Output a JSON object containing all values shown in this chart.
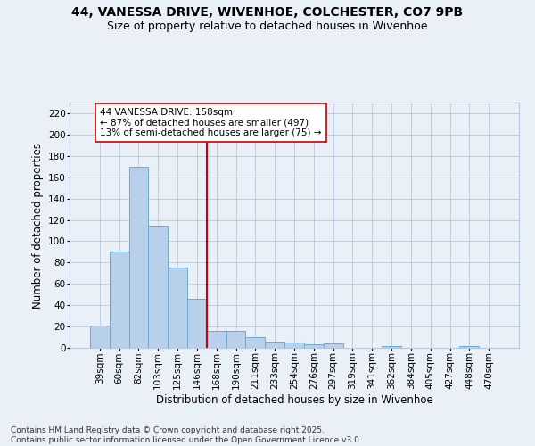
{
  "title_line1": "44, VANESSA DRIVE, WIVENHOE, COLCHESTER, CO7 9PB",
  "title_line2": "Size of property relative to detached houses in Wivenhoe",
  "xlabel": "Distribution of detached houses by size in Wivenhoe",
  "ylabel": "Number of detached properties",
  "categories": [
    "39sqm",
    "60sqm",
    "82sqm",
    "103sqm",
    "125sqm",
    "146sqm",
    "168sqm",
    "190sqm",
    "211sqm",
    "233sqm",
    "254sqm",
    "276sqm",
    "297sqm",
    "319sqm",
    "341sqm",
    "362sqm",
    "384sqm",
    "405sqm",
    "427sqm",
    "448sqm",
    "470sqm"
  ],
  "values": [
    21,
    90,
    170,
    115,
    75,
    46,
    16,
    16,
    10,
    6,
    5,
    3,
    4,
    0,
    0,
    2,
    0,
    0,
    0,
    2,
    0
  ],
  "bar_color": "#b8d0ea",
  "bar_edge_color": "#6aaad4",
  "bar_width": 1.0,
  "vline_x_index": 6.0,
  "vline_color": "#cc0000",
  "annotation_text": "44 VANESSA DRIVE: 158sqm\n← 87% of detached houses are smaller (497)\n13% of semi-detached houses are larger (75) →",
  "annotation_box_color": "#ffffff",
  "annotation_box_edge": "#cc0000",
  "ylim": [
    0,
    230
  ],
  "yticks": [
    0,
    20,
    40,
    60,
    80,
    100,
    120,
    140,
    160,
    180,
    200,
    220
  ],
  "footnote": "Contains HM Land Registry data © Crown copyright and database right 2025.\nContains public sector information licensed under the Open Government Licence v3.0.",
  "bg_color": "#eaf0f8",
  "plot_bg_color": "#eaf0f8",
  "grid_color": "#b8c8dc",
  "title_fontsize": 10,
  "subtitle_fontsize": 9,
  "axis_label_fontsize": 8.5,
  "tick_fontsize": 7.5,
  "annotation_fontsize": 7.5,
  "footnote_fontsize": 6.5
}
